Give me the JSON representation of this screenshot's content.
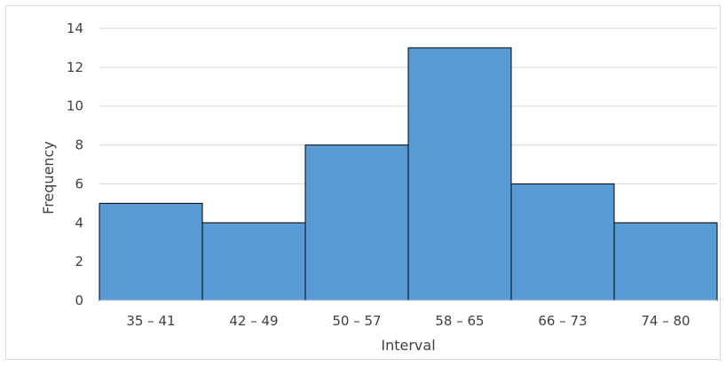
{
  "chart_data": {
    "type": "bar",
    "title": "",
    "xlabel": "Interval",
    "ylabel": "Frequency",
    "categories": [
      "35 – 41",
      "42 – 49",
      "50 – 57",
      "58 – 65",
      "66 – 73",
      "74 – 80"
    ],
    "values": [
      5,
      4,
      8,
      13,
      6,
      4
    ],
    "ylim": [
      0,
      14
    ],
    "yticks": [
      0,
      2,
      4,
      6,
      8,
      10,
      12,
      14
    ],
    "grid": true,
    "legend": "none",
    "bar_color": "#5b9bd5",
    "bar_edge_color": "#000000",
    "grid_color": "#d9d9d9"
  }
}
